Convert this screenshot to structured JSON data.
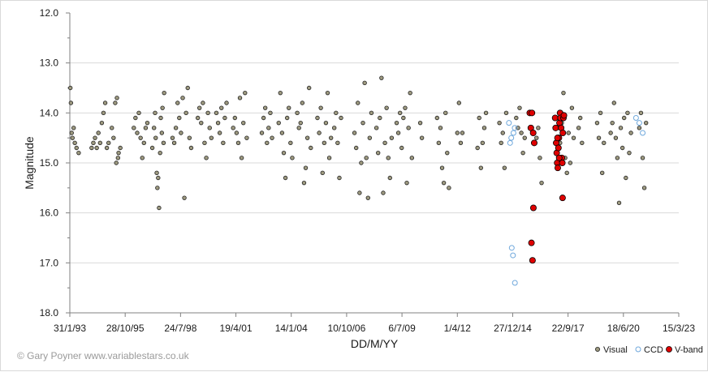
{
  "chart_data": {
    "type": "scatter",
    "xlabel": "DD/M/YY",
    "ylabel": "Magnitude",
    "y_inverted": true,
    "ylim": [
      12.0,
      18.0
    ],
    "xlim": [
      "1993-01-31",
      "2023-03-15"
    ],
    "grid": "horizontal",
    "legend": "bottom-right",
    "credit": "© Gary Poyner  www.variablestars.co.uk",
    "x_tick_labels": [
      "31/1/93",
      "28/10/95",
      "24/7/98",
      "19/4/01",
      "14/1/04",
      "10/10/06",
      "6/7/09",
      "1/4/12",
      "27/12/14",
      "22/9/17",
      "18/6/20",
      "15/3/23"
    ],
    "y_tick_labels": [
      "12.0",
      "13.0",
      "14.0",
      "15.0",
      "16.0",
      "17.0",
      "18.0"
    ],
    "colors": {
      "visual": "#9e9a80",
      "ccd": "#6fa8dc",
      "vband": "#e00000"
    },
    "series": [
      {
        "name": "Visual",
        "marker": "filled-small",
        "points": [
          [
            "1993-02-10",
            13.5
          ],
          [
            "1993-02-20",
            13.8
          ],
          [
            "1993-03-05",
            14.4
          ],
          [
            "1993-03-20",
            14.5
          ],
          [
            "1993-04-10",
            14.3
          ],
          [
            "1993-05-01",
            14.6
          ],
          [
            "1993-06-01",
            14.7
          ],
          [
            "1993-07-10",
            14.8
          ],
          [
            "1994-03-01",
            14.7
          ],
          [
            "1994-04-01",
            14.6
          ],
          [
            "1994-05-01",
            14.5
          ],
          [
            "1994-06-01",
            14.7
          ],
          [
            "1994-07-01",
            14.4
          ],
          [
            "1994-08-01",
            14.6
          ],
          [
            "1994-09-01",
            14.2
          ],
          [
            "1994-10-01",
            14.0
          ],
          [
            "1994-11-01",
            13.8
          ],
          [
            "1994-12-01",
            14.7
          ],
          [
            "1995-01-01",
            14.6
          ],
          [
            "1995-03-01",
            14.3
          ],
          [
            "1995-04-01",
            14.5
          ],
          [
            "1995-05-01",
            13.8
          ],
          [
            "1995-06-01",
            13.7
          ],
          [
            "1995-07-01",
            14.8
          ],
          [
            "1995-08-01",
            14.7
          ],
          [
            "1995-05-20",
            15.0
          ],
          [
            "1995-06-20",
            14.9
          ],
          [
            "1996-04-01",
            14.3
          ],
          [
            "1996-05-01",
            14.1
          ],
          [
            "1996-06-01",
            14.4
          ],
          [
            "1996-07-01",
            14.0
          ],
          [
            "1996-08-01",
            14.5
          ],
          [
            "1996-09-01",
            14.9
          ],
          [
            "1996-10-01",
            14.6
          ],
          [
            "1996-11-01",
            14.3
          ],
          [
            "1996-12-01",
            14.2
          ],
          [
            "1997-03-01",
            14.7
          ],
          [
            "1997-04-01",
            14.3
          ],
          [
            "1997-04-20",
            14.0
          ],
          [
            "1997-05-01",
            14.5
          ],
          [
            "1997-05-20",
            15.2
          ],
          [
            "1997-06-01",
            15.5
          ],
          [
            "1997-06-15",
            15.3
          ],
          [
            "1997-07-01",
            15.9
          ],
          [
            "1997-07-20",
            14.8
          ],
          [
            "1997-08-01",
            14.1
          ],
          [
            "1997-08-20",
            14.4
          ],
          [
            "1997-09-01",
            13.9
          ],
          [
            "1997-09-20",
            14.6
          ],
          [
            "1997-10-01",
            13.6
          ],
          [
            "1998-03-01",
            14.5
          ],
          [
            "1998-04-01",
            14.6
          ],
          [
            "1998-05-01",
            14.3
          ],
          [
            "1998-06-01",
            13.8
          ],
          [
            "1998-07-01",
            14.1
          ],
          [
            "1998-08-01",
            14.4
          ],
          [
            "1998-09-01",
            13.7
          ],
          [
            "1998-10-01",
            15.7
          ],
          [
            "1998-11-01",
            14.0
          ],
          [
            "1998-12-01",
            13.5
          ],
          [
            "1999-01-01",
            14.5
          ],
          [
            "1999-02-01",
            14.7
          ],
          [
            "1999-06-01",
            14.1
          ],
          [
            "1999-07-01",
            13.9
          ],
          [
            "1999-08-01",
            14.2
          ],
          [
            "1999-09-01",
            13.8
          ],
          [
            "1999-10-01",
            14.6
          ],
          [
            "1999-11-01",
            14.9
          ],
          [
            "1999-12-01",
            14.0
          ],
          [
            "2000-01-01",
            14.3
          ],
          [
            "2000-02-01",
            14.5
          ],
          [
            "2000-05-01",
            14.0
          ],
          [
            "2000-06-01",
            14.2
          ],
          [
            "2000-07-01",
            14.4
          ],
          [
            "2000-08-01",
            13.9
          ],
          [
            "2000-09-01",
            14.6
          ],
          [
            "2000-10-01",
            14.1
          ],
          [
            "2000-11-01",
            13.8
          ],
          [
            "2001-03-01",
            14.3
          ],
          [
            "2001-04-01",
            14.1
          ],
          [
            "2001-05-01",
            14.4
          ],
          [
            "2001-06-01",
            14.6
          ],
          [
            "2001-07-01",
            13.7
          ],
          [
            "2001-08-01",
            14.9
          ],
          [
            "2001-09-01",
            14.2
          ],
          [
            "2001-10-01",
            13.6
          ],
          [
            "2001-11-01",
            14.5
          ],
          [
            "2002-08-01",
            14.4
          ],
          [
            "2002-09-01",
            14.1
          ],
          [
            "2002-10-01",
            13.9
          ],
          [
            "2002-11-01",
            14.6
          ],
          [
            "2002-12-01",
            14.3
          ],
          [
            "2003-01-01",
            14.0
          ],
          [
            "2003-02-01",
            14.5
          ],
          [
            "2003-06-01",
            14.2
          ],
          [
            "2003-07-01",
            13.6
          ],
          [
            "2003-08-01",
            14.4
          ],
          [
            "2003-09-01",
            14.8
          ],
          [
            "2003-10-01",
            15.3
          ],
          [
            "2003-11-01",
            14.1
          ],
          [
            "2003-12-01",
            13.9
          ],
          [
            "2004-01-01",
            14.6
          ],
          [
            "2004-02-01",
            14.9
          ],
          [
            "2004-05-01",
            14.0
          ],
          [
            "2004-06-01",
            14.3
          ],
          [
            "2004-07-01",
            14.2
          ],
          [
            "2004-08-01",
            13.8
          ],
          [
            "2004-09-01",
            15.4
          ],
          [
            "2004-10-01",
            15.1
          ],
          [
            "2004-11-01",
            14.5
          ],
          [
            "2004-12-01",
            13.5
          ],
          [
            "2005-01-01",
            14.7
          ],
          [
            "2005-05-01",
            14.1
          ],
          [
            "2005-06-01",
            14.4
          ],
          [
            "2005-07-01",
            13.9
          ],
          [
            "2005-08-01",
            15.2
          ],
          [
            "2005-09-01",
            14.6
          ],
          [
            "2005-10-01",
            14.2
          ],
          [
            "2005-11-01",
            13.6
          ],
          [
            "2005-12-01",
            14.9
          ],
          [
            "2006-01-01",
            14.5
          ],
          [
            "2006-03-01",
            14.3
          ],
          [
            "2006-04-01",
            14.0
          ],
          [
            "2006-05-01",
            14.6
          ],
          [
            "2006-06-01",
            15.3
          ],
          [
            "2006-07-01",
            14.1
          ],
          [
            "2007-03-01",
            14.4
          ],
          [
            "2007-04-01",
            14.7
          ],
          [
            "2007-05-01",
            13.8
          ],
          [
            "2007-06-01",
            15.6
          ],
          [
            "2007-07-01",
            15.0
          ],
          [
            "2007-08-01",
            14.2
          ],
          [
            "2007-09-01",
            13.4
          ],
          [
            "2007-10-01",
            14.9
          ],
          [
            "2007-11-01",
            15.7
          ],
          [
            "2007-12-01",
            14.5
          ],
          [
            "2008-01-01",
            14.0
          ],
          [
            "2008-04-01",
            14.3
          ],
          [
            "2008-05-01",
            14.8
          ],
          [
            "2008-06-01",
            14.1
          ],
          [
            "2008-07-01",
            13.3
          ],
          [
            "2008-08-01",
            15.6
          ],
          [
            "2008-09-01",
            14.6
          ],
          [
            "2008-10-01",
            13.9
          ],
          [
            "2008-11-01",
            14.9
          ],
          [
            "2008-12-01",
            15.3
          ],
          [
            "2009-01-01",
            14.5
          ],
          [
            "2009-04-01",
            14.2
          ],
          [
            "2009-05-01",
            14.4
          ],
          [
            "2009-06-01",
            14.0
          ],
          [
            "2009-07-01",
            14.7
          ],
          [
            "2009-08-01",
            14.1
          ],
          [
            "2009-09-01",
            13.9
          ],
          [
            "2009-10-01",
            15.4
          ],
          [
            "2009-11-01",
            14.3
          ],
          [
            "2009-12-01",
            13.6
          ],
          [
            "2010-01-01",
            14.9
          ],
          [
            "2010-06-01",
            14.2
          ],
          [
            "2010-07-01",
            14.5
          ],
          [
            "2011-04-01",
            14.1
          ],
          [
            "2011-05-01",
            14.6
          ],
          [
            "2011-06-01",
            14.3
          ],
          [
            "2011-07-01",
            15.1
          ],
          [
            "2011-08-01",
            15.4
          ],
          [
            "2011-09-01",
            14.0
          ],
          [
            "2011-10-01",
            14.8
          ],
          [
            "2011-11-01",
            15.5
          ],
          [
            "2012-04-01",
            14.4
          ],
          [
            "2012-05-01",
            13.8
          ],
          [
            "2012-06-01",
            14.6
          ],
          [
            "2012-07-01",
            14.4
          ],
          [
            "2013-04-01",
            14.7
          ],
          [
            "2013-05-01",
            14.1
          ],
          [
            "2013-06-01",
            15.1
          ],
          [
            "2013-07-01",
            14.6
          ],
          [
            "2013-08-01",
            14.3
          ],
          [
            "2013-09-01",
            14.0
          ],
          [
            "2014-05-01",
            14.2
          ],
          [
            "2014-06-01",
            14.6
          ],
          [
            "2014-07-01",
            14.4
          ],
          [
            "2014-08-01",
            15.1
          ],
          [
            "2014-09-01",
            14.0
          ],
          [
            "2015-03-01",
            14.1
          ],
          [
            "2015-04-01",
            14.3
          ],
          [
            "2015-05-01",
            13.9
          ],
          [
            "2015-06-01",
            14.4
          ],
          [
            "2015-07-01",
            14.8
          ],
          [
            "2015-08-01",
            14.5
          ],
          [
            "2016-03-01",
            14.5
          ],
          [
            "2016-04-01",
            14.3
          ],
          [
            "2016-05-01",
            14.9
          ],
          [
            "2016-06-01",
            15.4
          ],
          [
            "2017-05-01",
            14.6
          ],
          [
            "2017-06-01",
            14.2
          ],
          [
            "2017-07-01",
            13.6
          ],
          [
            "2017-08-01",
            14.9
          ],
          [
            "2017-09-01",
            15.2
          ],
          [
            "2017-10-01",
            14.4
          ],
          [
            "2017-11-01",
            15.0
          ],
          [
            "2017-12-01",
            13.9
          ],
          [
            "2018-01-01",
            14.5
          ],
          [
            "2018-04-01",
            14.3
          ],
          [
            "2018-05-01",
            14.1
          ],
          [
            "2018-06-01",
            14.6
          ],
          [
            "2019-03-01",
            14.2
          ],
          [
            "2019-04-01",
            14.5
          ],
          [
            "2019-05-01",
            14.0
          ],
          [
            "2019-06-01",
            15.2
          ],
          [
            "2019-07-01",
            14.6
          ],
          [
            "2019-11-01",
            14.4
          ],
          [
            "2019-12-01",
            14.2
          ],
          [
            "2020-01-01",
            13.8
          ],
          [
            "2020-02-01",
            14.5
          ],
          [
            "2020-03-01",
            14.9
          ],
          [
            "2020-04-01",
            15.8
          ],
          [
            "2020-05-01",
            14.3
          ],
          [
            "2020-06-01",
            14.7
          ],
          [
            "2020-07-01",
            14.1
          ],
          [
            "2020-08-01",
            15.3
          ],
          [
            "2020-09-01",
            14.0
          ],
          [
            "2020-10-01",
            14.8
          ],
          [
            "2020-11-01",
            14.4
          ],
          [
            "2021-04-01",
            14.3
          ],
          [
            "2021-05-01",
            14.0
          ],
          [
            "2021-06-01",
            14.9
          ],
          [
            "2021-07-01",
            15.5
          ],
          [
            "2021-08-01",
            14.2
          ]
        ]
      },
      {
        "name": "CCD",
        "marker": "open-circle",
        "points": [
          [
            "2014-10-20",
            14.2
          ],
          [
            "2014-11-10",
            14.6
          ],
          [
            "2014-12-01",
            14.5
          ],
          [
            "2015-01-10",
            14.4
          ],
          [
            "2015-02-01",
            14.3
          ],
          [
            "2014-12-10",
            16.7
          ],
          [
            "2015-01-01",
            16.85
          ],
          [
            "2015-02-05",
            17.4
          ],
          [
            "2021-02-01",
            14.1
          ],
          [
            "2021-04-01",
            14.2
          ],
          [
            "2021-06-01",
            14.4
          ]
        ]
      },
      {
        "name": "V-band",
        "marker": "filled-large",
        "points": [
          [
            "2015-11-01",
            14.0
          ],
          [
            "2015-11-20",
            14.3
          ],
          [
            "2015-12-10",
            14.0
          ],
          [
            "2016-01-01",
            14.4
          ],
          [
            "2016-01-20",
            14.6
          ],
          [
            "2016-01-05",
            15.9
          ],
          [
            "2015-12-01",
            16.6
          ],
          [
            "2015-12-20",
            16.95
          ],
          [
            "2017-02-01",
            14.1
          ],
          [
            "2017-02-10",
            14.3
          ],
          [
            "2017-02-20",
            14.6
          ],
          [
            "2017-03-01",
            14.8
          ],
          [
            "2017-03-10",
            15.0
          ],
          [
            "2017-03-20",
            15.1
          ],
          [
            "2017-04-01",
            14.7
          ],
          [
            "2017-04-10",
            14.5
          ],
          [
            "2017-04-20",
            14.2
          ],
          [
            "2017-05-01",
            14.0
          ],
          [
            "2017-05-10",
            14.1
          ],
          [
            "2017-05-20",
            14.3
          ],
          [
            "2017-06-01",
            14.9
          ],
          [
            "2017-06-10",
            15.0
          ],
          [
            "2017-06-20",
            14.4
          ],
          [
            "2017-07-01",
            14.1
          ],
          [
            "2017-07-10",
            14.05
          ],
          [
            "2017-06-15",
            15.7
          ],
          [
            "2017-03-15",
            14.5
          ],
          [
            "2017-04-15",
            14.9
          ]
        ]
      }
    ]
  }
}
